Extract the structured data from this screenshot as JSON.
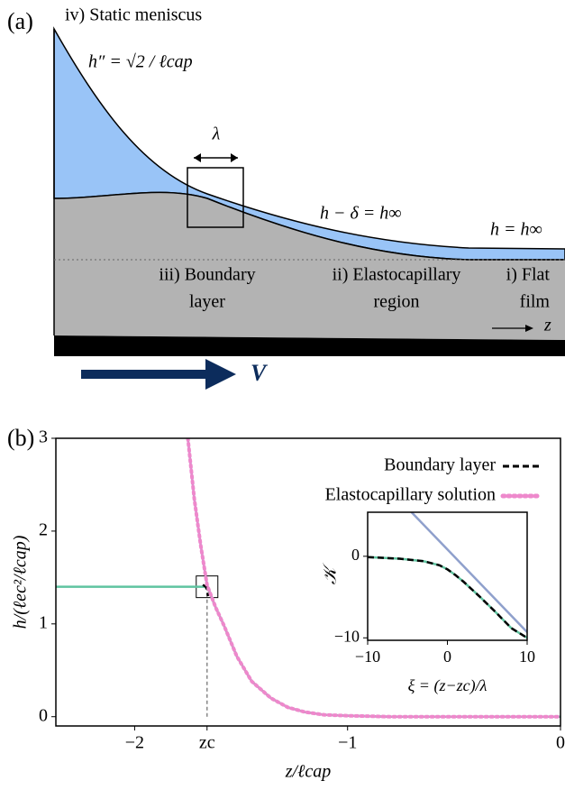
{
  "panel_a": {
    "label": "(a)",
    "meniscus": "iv) Static meniscus",
    "curvature": "h″ = √2 / ℓcap",
    "lambda": "λ",
    "elastocapillary_relation": "h − δ = h∞",
    "flat_relation": "h = h∞",
    "regions": [
      [
        "iii) Boundary",
        "layer"
      ],
      [
        "ii) Elastocapillary",
        "region"
      ],
      [
        "i) Flat",
        "film"
      ]
    ],
    "axis_label": "z",
    "velocity": "V"
  },
  "panel_b_label": "(b)",
  "chart_data": [
    {
      "type": "line",
      "xlabel": "z/ℓcap",
      "ylabel": "h/(ℓec²/ℓcap)",
      "xlim": [
        -2.37,
        0
      ],
      "ylim": [
        -0.1,
        3
      ],
      "xticks": [
        {
          "value": -2,
          "label": "−2"
        },
        {
          "value": -1.66,
          "label": "zc"
        },
        {
          "value": -1,
          "label": "−1"
        },
        0
      ],
      "yticks": [
        0,
        1,
        2,
        3
      ],
      "guide": {
        "x": -1.66,
        "y": 1.4
      },
      "series": [
        {
          "color": "#8fa0cc",
          "style": "solid",
          "x": [
            -1.75,
            -1.72,
            -1.69,
            -1.66,
            -1.62,
            -1.58,
            -1.52,
            -1.45,
            -1.36,
            -1.28,
            -1.2,
            -1.11,
            -1.0,
            -0.8,
            -0.5,
            0
          ],
          "values": [
            3.0,
            2.35,
            1.85,
            1.42,
            1.18,
            0.98,
            0.65,
            0.38,
            0.2,
            0.1,
            0.05,
            0.02,
            0.01,
            0.0,
            0.0,
            0.0
          ]
        },
        {
          "color": "#5fc4a0",
          "style": "solid",
          "x": [
            -2.37,
            -1.66,
            -1.62,
            -1.58,
            -1.52,
            -1.45,
            -1.36,
            -1.28,
            -1.2,
            -1.11,
            -1.0,
            -0.8,
            -0.5,
            0
          ],
          "values": [
            1.4,
            1.4,
            1.18,
            0.98,
            0.65,
            0.38,
            0.2,
            0.1,
            0.05,
            0.02,
            0.01,
            0.0,
            0.0,
            0.0
          ]
        },
        {
          "name": "Boundary layer",
          "color": "#000000",
          "style": "dashed",
          "x": [
            -1.68,
            -1.665,
            -1.655
          ],
          "values": [
            1.42,
            1.4,
            1.3
          ]
        },
        {
          "name": "Elastocapillary solution",
          "color": "#ee88cc",
          "style": "dotted",
          "x": [
            -1.75,
            -1.72,
            -1.69,
            -1.66,
            -1.62,
            -1.58,
            -1.52,
            -1.45,
            -1.36,
            -1.28,
            -1.2,
            -1.11,
            -1.0,
            -0.8,
            -0.5,
            0
          ],
          "values": [
            3.0,
            2.35,
            1.85,
            1.42,
            1.18,
            0.98,
            0.65,
            0.38,
            0.2,
            0.1,
            0.05,
            0.02,
            0.01,
            0.0,
            0.0,
            0.0
          ]
        }
      ]
    },
    {
      "type": "line",
      "xlabel": "ξ = (z−zc)/λ",
      "ylabel": "𝒦",
      "xlim": [
        -10,
        10
      ],
      "ylim": [
        -10.3,
        5.4
      ],
      "xticks": [
        {
          "value": -10,
          "label": "−10"
        },
        0,
        10
      ],
      "yticks": [
        0,
        {
          "value": -10,
          "label": "−10"
        }
      ],
      "series": [
        {
          "color": "#8fa0cc",
          "style": "solid",
          "x": [
            -4.5,
            10
          ],
          "values": [
            5.4,
            -9.3
          ]
        },
        {
          "color": "#5fc4a0",
          "style": "solid",
          "x": [
            -10,
            -6,
            -3,
            -1,
            0,
            1,
            2,
            4,
            6,
            8,
            10
          ],
          "values": [
            -0.1,
            -0.3,
            -0.6,
            -1.1,
            -1.6,
            -2.3,
            -3.1,
            -4.9,
            -6.8,
            -8.8,
            -10.0
          ]
        },
        {
          "color": "#000000",
          "style": "dashed",
          "x": [
            -10,
            -6,
            -3,
            -1,
            0,
            1,
            2,
            4,
            6,
            8,
            10
          ],
          "values": [
            -0.1,
            -0.3,
            -0.6,
            -1.1,
            -1.6,
            -2.3,
            -3.1,
            -4.9,
            -6.8,
            -8.8,
            -10.0
          ]
        }
      ]
    }
  ]
}
